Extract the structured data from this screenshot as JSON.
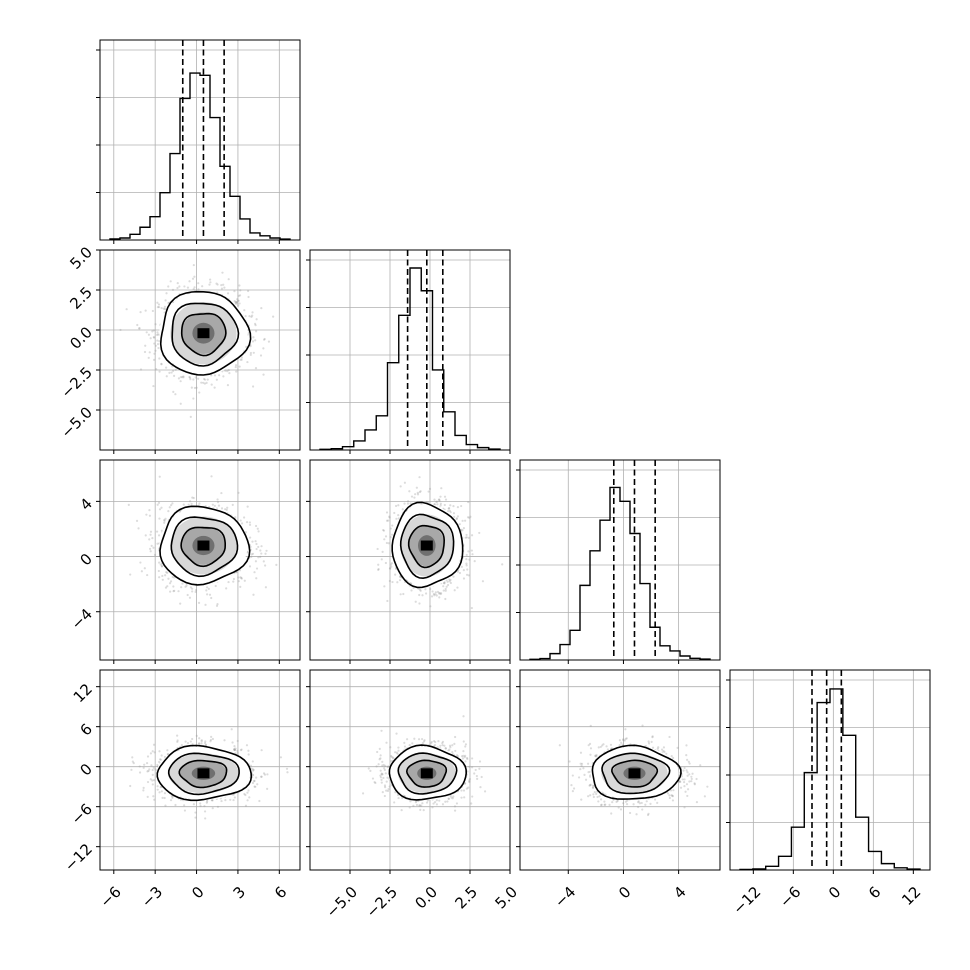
{
  "chart_data": {
    "type": "corner",
    "title": "",
    "parameters": [
      {
        "range": [
          -7,
          7.5
        ],
        "ticks": [
          -6,
          -3,
          0,
          3,
          6
        ],
        "tick_labels": [
          "−6",
          "−3",
          "0",
          "3",
          "6"
        ],
        "median": 0.5,
        "quantiles": [
          -1.0,
          2.0
        ],
        "hist": [
          0.006,
          0.011,
          0.031,
          0.07,
          0.128,
          0.26,
          0.475,
          0.778,
          0.917,
          0.905,
          0.673,
          0.405,
          0.24,
          0.116,
          0.039,
          0.023,
          0.011,
          0.005
        ]
      },
      {
        "range": [
          -7.5,
          5
        ],
        "ticks": [
          -5.0,
          -2.5,
          0.0,
          2.5,
          5.0
        ],
        "tick_labels": [
          "−5.0",
          "−2.5",
          "0.0",
          "2.5",
          "5.0"
        ],
        "median": -0.2,
        "quantiles": [
          -1.4,
          0.8
        ],
        "hist": [
          0.004,
          0.007,
          0.018,
          0.05,
          0.11,
          0.188,
          0.48,
          0.74,
          1.0,
          0.875,
          0.44,
          0.21,
          0.08,
          0.03,
          0.013,
          0.005
        ]
      },
      {
        "range": [
          -7.5,
          7
        ],
        "ticks": [
          -4,
          0,
          4
        ],
        "tick_labels": [
          "−4",
          "0",
          "4"
        ],
        "median": 0.8,
        "quantiles": [
          -0.7,
          2.3
        ],
        "hist": [
          0.004,
          0.008,
          0.035,
          0.085,
          0.163,
          0.41,
          0.6,
          0.768,
          0.948,
          0.872,
          0.695,
          0.42,
          0.18,
          0.078,
          0.05,
          0.022,
          0.009,
          0.005
        ]
      },
      {
        "range": [
          -15.5,
          14.5
        ],
        "ticks": [
          -12,
          -6,
          0,
          6,
          12
        ],
        "tick_labels": [
          "−12",
          "−6",
          "0",
          "6",
          "12"
        ],
        "median": -1.0,
        "quantiles": [
          -3.2,
          1.2
        ],
        "hist": [
          0.003,
          0.006,
          0.02,
          0.075,
          0.235,
          0.535,
          0.92,
          0.995,
          0.74,
          0.29,
          0.102,
          0.035,
          0.012,
          0.005
        ]
      }
    ],
    "pairs": [
      {
        "row": 1,
        "col": 0,
        "center": [
          0.5,
          -0.2
        ],
        "sigma": [
          1.6,
          1.3
        ]
      },
      {
        "row": 2,
        "col": 0,
        "center": [
          0.5,
          0.8
        ],
        "sigma": [
          1.6,
          1.4
        ]
      },
      {
        "row": 2,
        "col": 1,
        "center": [
          -0.2,
          0.8
        ],
        "sigma": [
          1.1,
          1.5
        ]
      },
      {
        "row": 3,
        "col": 0,
        "center": [
          0.5,
          -1.0
        ],
        "sigma": [
          1.7,
          2.0
        ]
      },
      {
        "row": 3,
        "col": 1,
        "center": [
          -0.2,
          -1.0
        ],
        "sigma": [
          1.2,
          2.0
        ]
      },
      {
        "row": 3,
        "col": 2,
        "center": [
          0.8,
          -1.0
        ],
        "sigma": [
          1.6,
          2.0
        ]
      }
    ],
    "grid": true,
    "legend": "none"
  }
}
